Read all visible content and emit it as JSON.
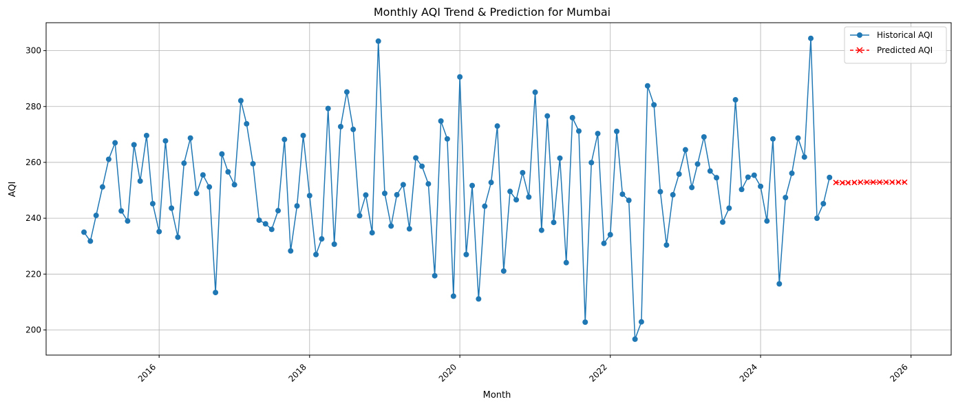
{
  "chart_data": {
    "type": "line",
    "title": "Monthly AQI Trend & Prediction for Mumbai",
    "xlabel": "Month",
    "ylabel": "AQI",
    "xlim": [
      "2014-07-01",
      "2026-07-15"
    ],
    "ylim": [
      191,
      310
    ],
    "x_ticks": [
      "2016",
      "2018",
      "2020",
      "2022",
      "2024",
      "2026"
    ],
    "y_ticks": [
      200,
      220,
      240,
      260,
      280,
      300
    ],
    "grid": true,
    "legend_position": "top-right",
    "series": [
      {
        "name": "Historical AQI",
        "color": "#1f77b4",
        "marker": "circle",
        "linestyle": "solid",
        "x": [
          "2015-01",
          "2015-02",
          "2015-03",
          "2015-04",
          "2015-05",
          "2015-06",
          "2015-07",
          "2015-08",
          "2015-09",
          "2015-10",
          "2015-11",
          "2015-12",
          "2016-01",
          "2016-02",
          "2016-03",
          "2016-04",
          "2016-05",
          "2016-06",
          "2016-07",
          "2016-08",
          "2016-09",
          "2016-10",
          "2016-11",
          "2016-12",
          "2017-01",
          "2017-02",
          "2017-03",
          "2017-04",
          "2017-05",
          "2017-06",
          "2017-07",
          "2017-08",
          "2017-09",
          "2017-10",
          "2017-11",
          "2017-12",
          "2018-01",
          "2018-02",
          "2018-03",
          "2018-04",
          "2018-05",
          "2018-06",
          "2018-07",
          "2018-08",
          "2018-09",
          "2018-10",
          "2018-11",
          "2018-12",
          "2019-01",
          "2019-02",
          "2019-03",
          "2019-04",
          "2019-05",
          "2019-06",
          "2019-07",
          "2019-08",
          "2019-09",
          "2019-10",
          "2019-11",
          "2019-12",
          "2020-01",
          "2020-02",
          "2020-03",
          "2020-04",
          "2020-05",
          "2020-06",
          "2020-07",
          "2020-08",
          "2020-09",
          "2020-10",
          "2020-11",
          "2020-12",
          "2021-01",
          "2021-02",
          "2021-03",
          "2021-04",
          "2021-05",
          "2021-06",
          "2021-07",
          "2021-08",
          "2021-09",
          "2021-10",
          "2021-11",
          "2021-12",
          "2022-01",
          "2022-02",
          "2022-03",
          "2022-04",
          "2022-05",
          "2022-06",
          "2022-07",
          "2022-08",
          "2022-09",
          "2022-10",
          "2022-11",
          "2022-12",
          "2023-01",
          "2023-02",
          "2023-03",
          "2023-04",
          "2023-05",
          "2023-06",
          "2023-07",
          "2023-08",
          "2023-09",
          "2023-10",
          "2023-11",
          "2023-12",
          "2024-01",
          "2024-02",
          "2024-03",
          "2024-04",
          "2024-05",
          "2024-06",
          "2024-07",
          "2024-08",
          "2024-09",
          "2024-10",
          "2024-11",
          "2024-12"
        ],
        "values": [
          235.0,
          231.8,
          241.0,
          251.2,
          261.1,
          267.0,
          242.6,
          239.0,
          266.3,
          253.3,
          269.6,
          245.2,
          235.2,
          267.7,
          243.6,
          233.2,
          259.7,
          268.7,
          248.9,
          255.5,
          251.2,
          213.4,
          263.0,
          256.6,
          252.0,
          282.1,
          273.8,
          259.5,
          239.3,
          238.0,
          236.0,
          242.7,
          268.2,
          228.3,
          244.4,
          269.6,
          248.1,
          227.0,
          232.6,
          279.3,
          230.7,
          272.8,
          285.2,
          271.8,
          240.9,
          248.3,
          234.8,
          303.4,
          248.9,
          237.2,
          248.4,
          252.0,
          236.2,
          261.6,
          258.6,
          252.3,
          219.4,
          274.8,
          268.4,
          212.1,
          290.6,
          227.0,
          251.7,
          211.1,
          244.3,
          252.8,
          273.0,
          221.1,
          249.6,
          246.6,
          256.3,
          247.6,
          285.1,
          235.7,
          276.6,
          238.5,
          261.5,
          224.1,
          276.0,
          271.2,
          202.8,
          259.9,
          270.3,
          231.0,
          234.1,
          271.1,
          248.6,
          246.4,
          196.7,
          202.9,
          287.4,
          280.6,
          249.5,
          230.4,
          248.4,
          255.8,
          264.5,
          251.0,
          259.4,
          269.1,
          256.9,
          254.5,
          238.6,
          243.6,
          282.4,
          250.3,
          254.7,
          255.4,
          251.4,
          239.0,
          268.4,
          216.5,
          247.4,
          256.1,
          268.7,
          261.9,
          304.4,
          240.0,
          245.2,
          254.6
        ]
      },
      {
        "name": "Predicted AQI",
        "color": "#ff0000",
        "marker": "x",
        "linestyle": "dashed",
        "x": [
          "2025-01",
          "2025-02",
          "2025-03",
          "2025-04",
          "2025-05",
          "2025-06",
          "2025-07",
          "2025-08",
          "2025-09",
          "2025-10",
          "2025-11",
          "2025-12"
        ],
        "values": [
          252.8,
          252.7,
          252.7,
          252.8,
          252.9,
          252.9,
          252.9,
          252.9,
          252.9,
          252.9,
          252.9,
          252.9
        ]
      }
    ]
  }
}
